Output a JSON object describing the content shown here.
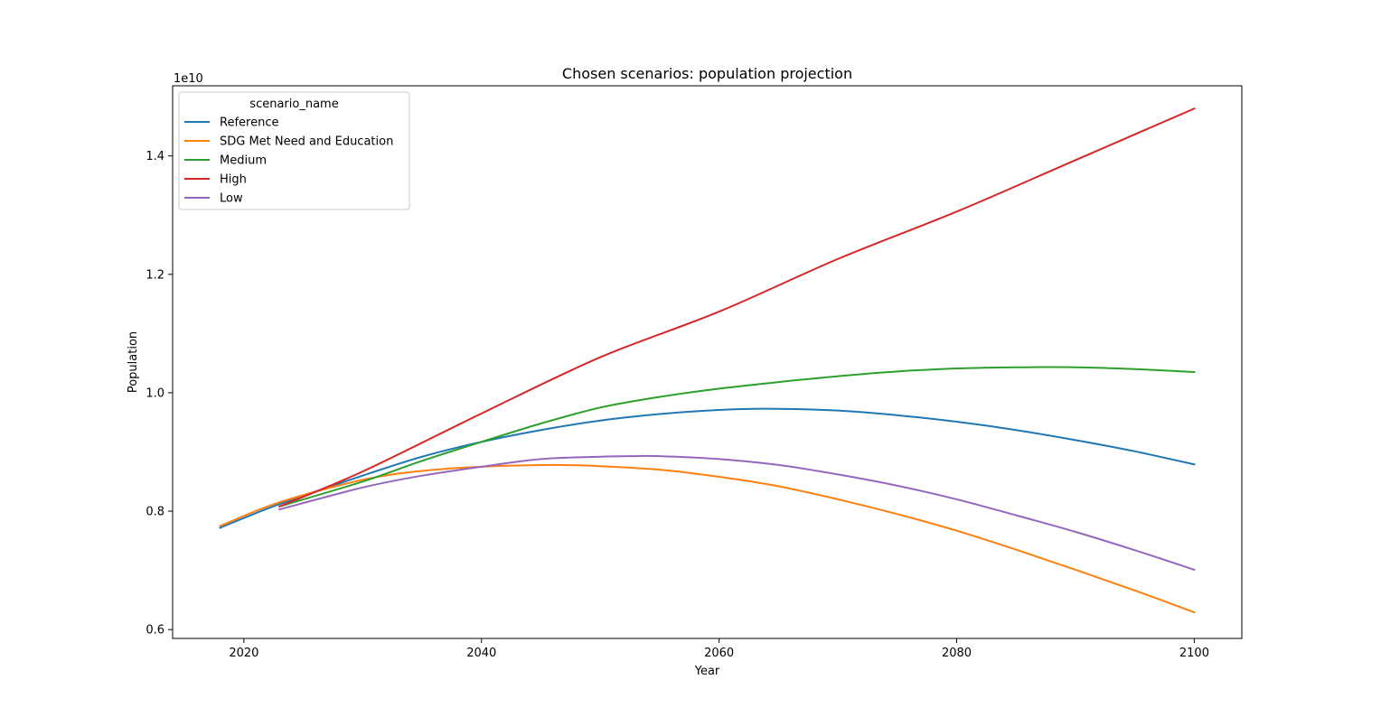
{
  "chart_data": {
    "type": "line",
    "title": "Chosen scenarios: population projection",
    "xlabel": "Year",
    "ylabel": "Population",
    "y_offset_label": "1e10",
    "xlim": [
      2014,
      2104
    ],
    "ylim": [
      0.585,
      1.5185
    ],
    "x_ticks": [
      2020,
      2040,
      2060,
      2080,
      2100
    ],
    "x_tick_labels": [
      "2020",
      "2040",
      "2060",
      "2080",
      "2100"
    ],
    "y_ticks": [
      0.6,
      0.8,
      1.0,
      1.2,
      1.4
    ],
    "y_tick_labels": [
      "0.6",
      "0.8",
      "1.0",
      "1.2",
      "1.4"
    ],
    "grid": false,
    "legend": {
      "title": "scenario_name",
      "placement": "top-left"
    },
    "series": [
      {
        "name": "Reference",
        "color": "#1f77b4",
        "x": [
          2018,
          2023,
          2030,
          2035,
          2040,
          2045,
          2050,
          2055,
          2060,
          2064,
          2070,
          2075,
          2080,
          2085,
          2090,
          2095,
          2100
        ],
        "values": [
          0.772,
          0.812,
          0.86,
          0.892,
          0.917,
          0.937,
          0.953,
          0.964,
          0.971,
          0.973,
          0.97,
          0.962,
          0.951,
          0.937,
          0.92,
          0.901,
          0.879
        ]
      },
      {
        "name": "SDG Met Need and Education",
        "color": "#ff7f0e",
        "x": [
          2018,
          2023,
          2030,
          2035,
          2040,
          2046,
          2050,
          2055,
          2060,
          2065,
          2070,
          2075,
          2080,
          2085,
          2090,
          2095,
          2100
        ],
        "values": [
          0.775,
          0.815,
          0.853,
          0.868,
          0.875,
          0.878,
          0.876,
          0.87,
          0.858,
          0.842,
          0.82,
          0.795,
          0.767,
          0.735,
          0.701,
          0.666,
          0.629
        ]
      },
      {
        "name": "Medium",
        "color": "#2ca02c",
        "x": [
          2023,
          2030,
          2035,
          2040,
          2045,
          2050,
          2055,
          2060,
          2065,
          2070,
          2075,
          2080,
          2085,
          2090,
          2095,
          2100
        ],
        "values": [
          0.808,
          0.85,
          0.885,
          0.917,
          0.948,
          0.975,
          0.993,
          1.007,
          1.018,
          1.028,
          1.036,
          1.041,
          1.043,
          1.043,
          1.04,
          1.035
        ]
      },
      {
        "name": "High",
        "color": "#d62728",
        "x": [
          2023,
          2030,
          2040,
          2050,
          2060,
          2070,
          2080,
          2090,
          2100
        ],
        "values": [
          0.808,
          0.867,
          0.965,
          1.06,
          1.137,
          1.226,
          1.306,
          1.393,
          1.48
        ]
      },
      {
        "name": "Low",
        "color": "#9467bd",
        "x": [
          2023,
          2030,
          2035,
          2040,
          2045,
          2050,
          2053,
          2055,
          2060,
          2065,
          2070,
          2075,
          2080,
          2085,
          2090,
          2095,
          2100
        ],
        "values": [
          0.803,
          0.84,
          0.86,
          0.875,
          0.888,
          0.892,
          0.893,
          0.893,
          0.888,
          0.878,
          0.862,
          0.843,
          0.82,
          0.793,
          0.765,
          0.734,
          0.701
        ]
      }
    ]
  }
}
